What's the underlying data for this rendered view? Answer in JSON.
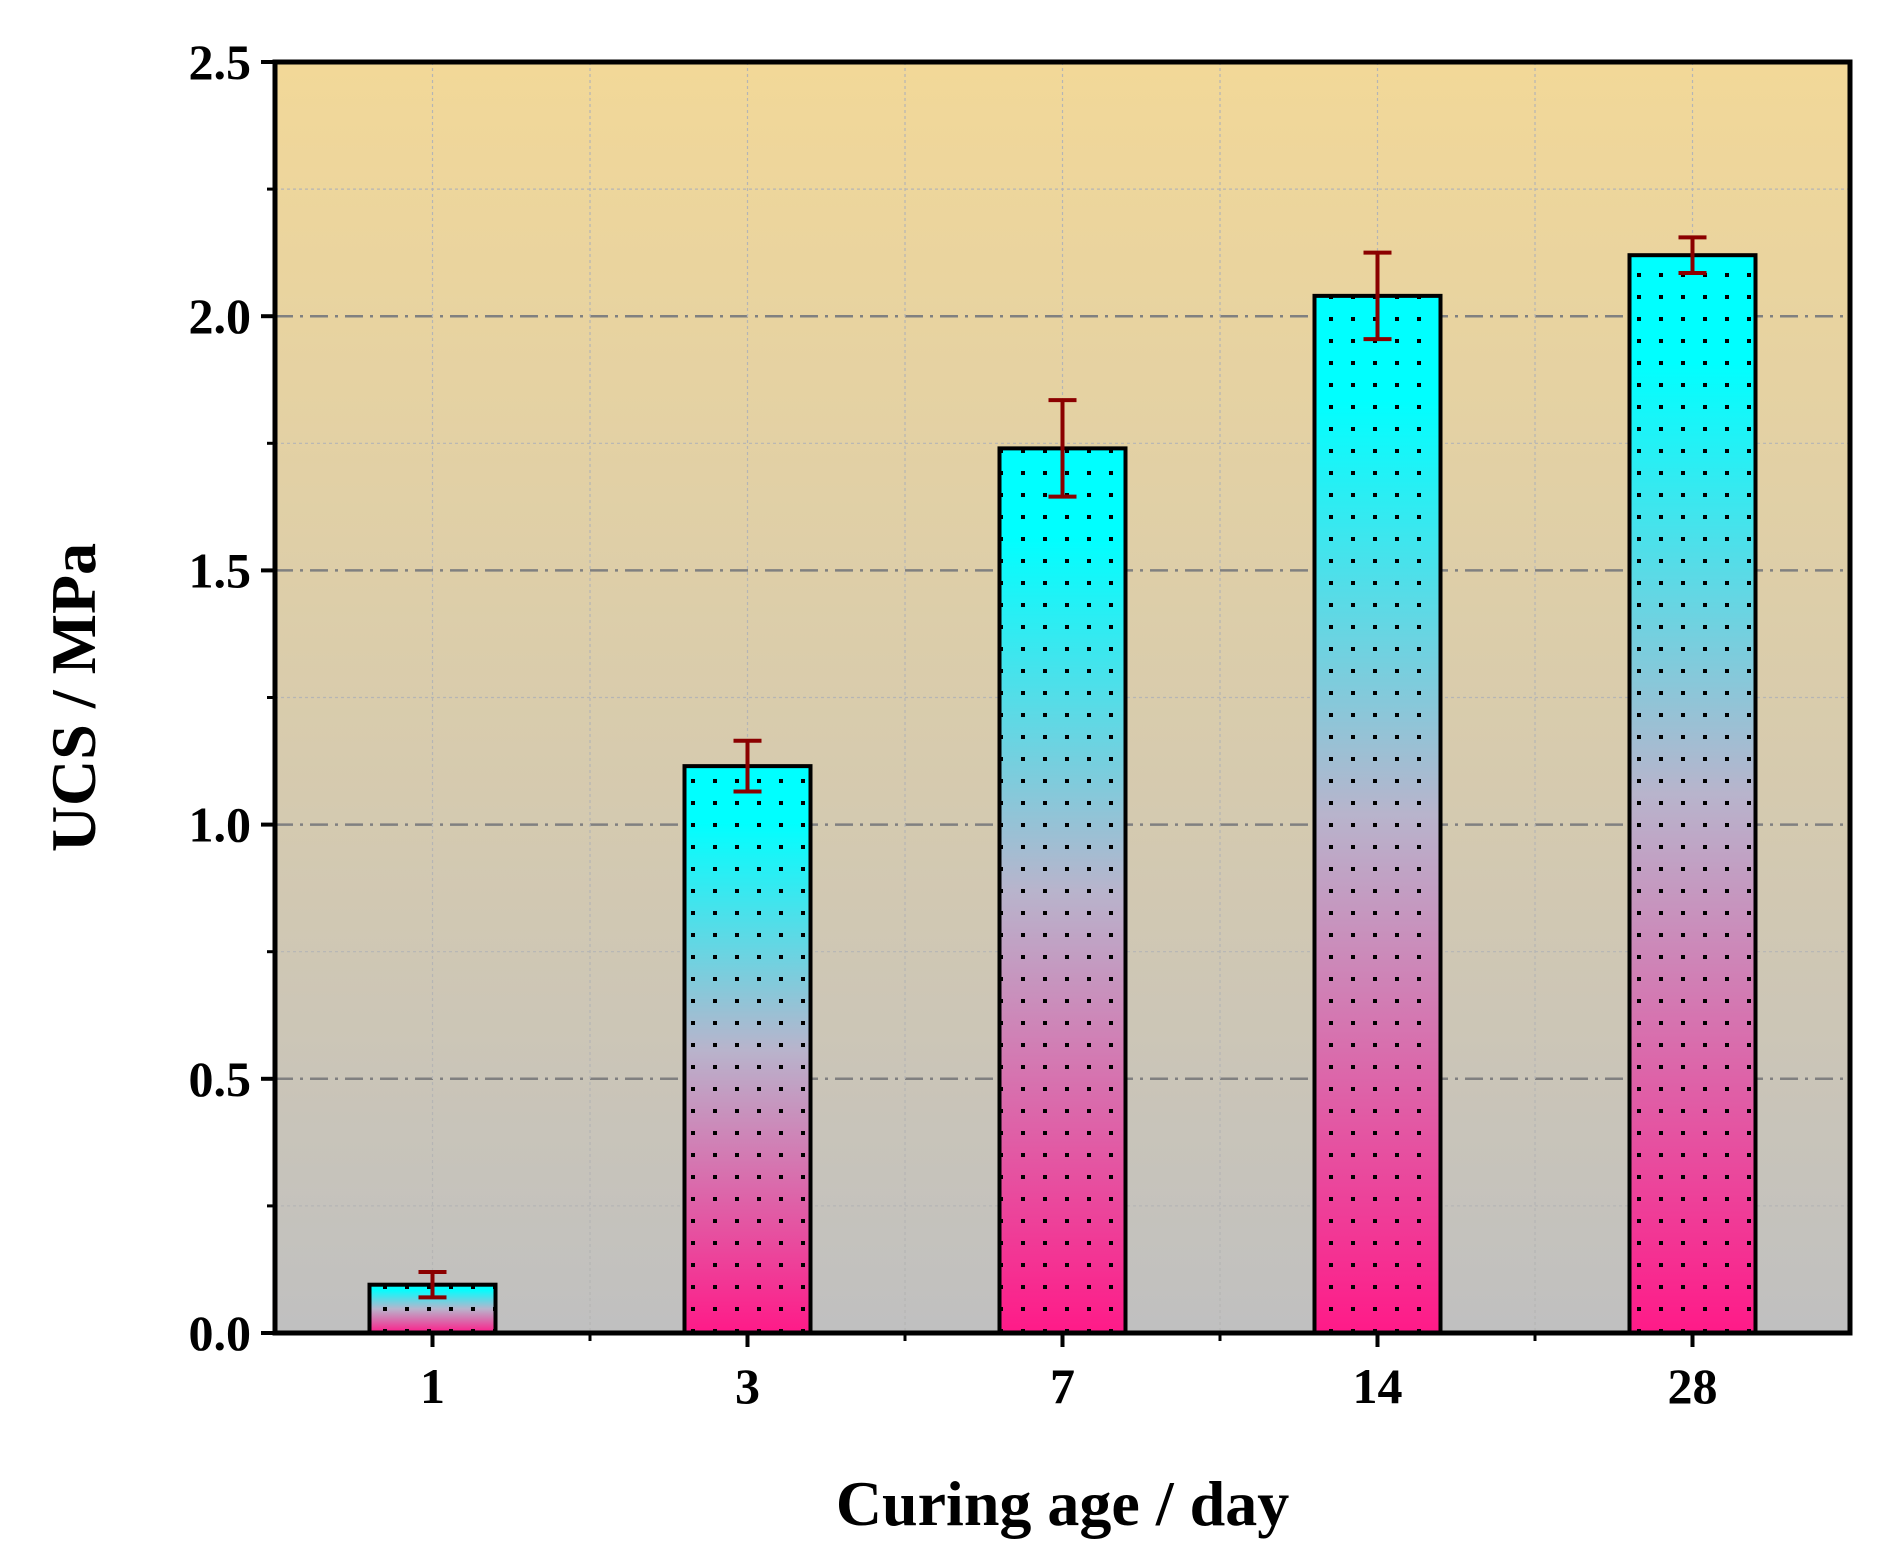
{
  "chart_data": {
    "type": "bar",
    "title": "",
    "xlabel": "Curing age / day",
    "ylabel": "UCS / MPa",
    "categories": [
      "1",
      "3",
      "7",
      "14",
      "28"
    ],
    "values": [
      0.095,
      1.115,
      1.74,
      2.04,
      2.12
    ],
    "errors": [
      0.025,
      0.05,
      0.095,
      0.085,
      0.035
    ],
    "ylim": [
      0,
      2.5
    ],
    "yticks": [
      "0.0",
      "0.5",
      "1.0",
      "1.5",
      "2.0",
      "2.5"
    ],
    "grid": true,
    "colors": {
      "bar_top": "#00ffff",
      "bar_bottom": "#ff1a88",
      "bg_top": "#f2d898",
      "bg_bottom": "#c0c0c0",
      "error_bar": "#8b0000",
      "dash_grid": "#808080"
    }
  }
}
